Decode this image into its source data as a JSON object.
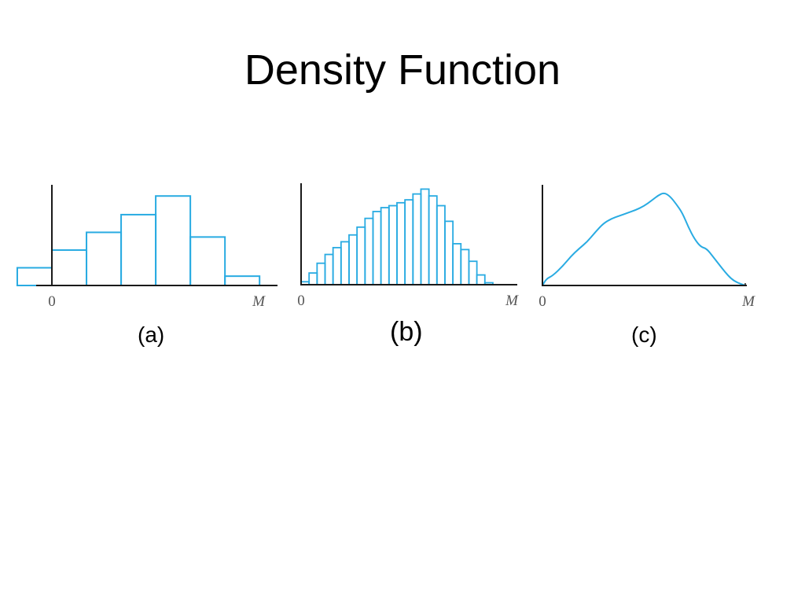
{
  "slide": {
    "title": "Density Function"
  },
  "colors": {
    "histogram": "#29abe2",
    "axis": "#1a1a1a"
  },
  "chart_data": [
    {
      "type": "bar",
      "caption": "(a)",
      "x_ticks": [
        "0",
        "M"
      ],
      "bins": [
        {
          "x0": -0.17,
          "x1": 0.0,
          "value": 0.19
        },
        {
          "x0": 0.0,
          "x1": 0.17,
          "value": 0.38
        },
        {
          "x0": 0.17,
          "x1": 0.34,
          "value": 0.57
        },
        {
          "x0": 0.34,
          "x1": 0.51,
          "value": 0.76
        },
        {
          "x0": 0.51,
          "x1": 0.68,
          "value": 0.96
        },
        {
          "x0": 0.68,
          "x1": 0.85,
          "value": 0.52
        },
        {
          "x0": 0.85,
          "x1": 1.02,
          "value": 0.1
        }
      ],
      "xlim": [
        -0.2,
        1.05
      ],
      "ylim": [
        0,
        1.35
      ]
    },
    {
      "type": "bar",
      "caption": "(b)",
      "x_ticks": [
        "0",
        "M"
      ],
      "bin_start": 0.0,
      "bin_width": 0.0385,
      "values": [
        0.03,
        0.12,
        0.22,
        0.31,
        0.38,
        0.44,
        0.51,
        0.59,
        0.68,
        0.75,
        0.79,
        0.81,
        0.84,
        0.87,
        0.93,
        0.98,
        0.91,
        0.81,
        0.65,
        0.42,
        0.36,
        0.24,
        0.1,
        0.02
      ],
      "xlim": [
        0,
        1.08
      ],
      "ylim": [
        0,
        1.3
      ]
    },
    {
      "type": "line",
      "caption": "(c)",
      "x_ticks": [
        "0",
        "M"
      ],
      "x": [
        0,
        0.02,
        0.05,
        0.1,
        0.14,
        0.18,
        0.22,
        0.26,
        0.3,
        0.34,
        0.38,
        0.42,
        0.46,
        0.5,
        0.54,
        0.57,
        0.6,
        0.63,
        0.66,
        0.69,
        0.72,
        0.75,
        0.78,
        0.81,
        0.84,
        0.87,
        0.9,
        0.93,
        0.96,
        1.0
      ],
      "y": [
        0.0,
        0.07,
        0.1,
        0.2,
        0.3,
        0.38,
        0.45,
        0.55,
        0.64,
        0.69,
        0.72,
        0.75,
        0.78,
        0.82,
        0.88,
        0.93,
        0.96,
        0.92,
        0.84,
        0.75,
        0.6,
        0.48,
        0.4,
        0.38,
        0.3,
        0.22,
        0.14,
        0.07,
        0.03,
        0.0
      ],
      "xlim": [
        0,
        1.02
      ],
      "ylim": [
        0,
        1.3
      ]
    }
  ]
}
